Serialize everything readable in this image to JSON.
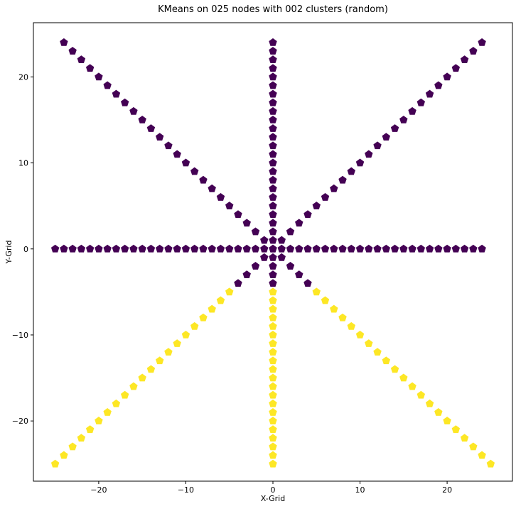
{
  "chart_data": {
    "type": "scatter",
    "title": "KMeans on 025 nodes with 002 clusters (random)",
    "xlabel": "X-Grid",
    "ylabel": "Y-Grid",
    "xlim": [
      -27.5,
      27.5
    ],
    "ylim": [
      -27.0,
      26.3
    ],
    "xticks": [
      -20,
      -10,
      0,
      10,
      20
    ],
    "yticks": [
      -20,
      -10,
      0,
      10,
      20
    ],
    "tick_labels_x": [
      "−20",
      "−10",
      "0",
      "10",
      "20"
    ],
    "tick_labels_y": [
      "−20",
      "−10",
      "0",
      "10",
      "20"
    ],
    "grid": false,
    "marker": "pentagon",
    "cluster_colors": [
      "#440154",
      "#fde725"
    ],
    "points_description": "points generated on 8 rays: 0..24 for positive directions, 0..25 for negative directions",
    "rays": [
      {
        "dx": 1,
        "dy": 0,
        "start": 0,
        "end": 24,
        "cluster": 0
      },
      {
        "dx": -1,
        "dy": 0,
        "start": 1,
        "end": 25,
        "cluster": 0
      },
      {
        "dx": 0,
        "dy": 1,
        "start": 1,
        "end": 24,
        "cluster": 0
      },
      {
        "dx": 0,
        "dy": -1,
        "start": 1,
        "end": 4,
        "cluster": 0
      },
      {
        "dx": 0,
        "dy": -1,
        "start": 5,
        "end": 25,
        "cluster": 1
      },
      {
        "dx": 1,
        "dy": 1,
        "start": 1,
        "end": 24,
        "cluster": 0
      },
      {
        "dx": -1,
        "dy": 1,
        "start": 1,
        "end": 24,
        "cluster": 0
      },
      {
        "dx": 1,
        "dy": -1,
        "start": 1,
        "end": 4,
        "cluster": 0
      },
      {
        "dx": 1,
        "dy": -1,
        "start": 5,
        "end": 25,
        "cluster": 1
      },
      {
        "dx": -1,
        "dy": -1,
        "start": 1,
        "end": 4,
        "cluster": 0
      },
      {
        "dx": -1,
        "dy": -1,
        "start": 5,
        "end": 25,
        "cluster": 1
      }
    ]
  }
}
